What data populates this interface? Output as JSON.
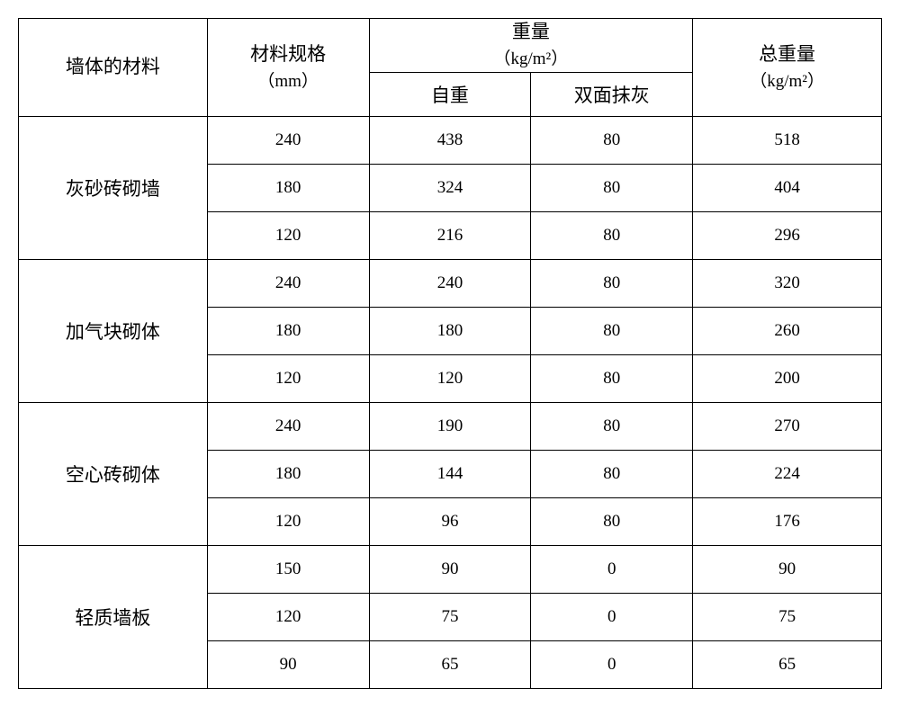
{
  "headers": {
    "material": "墙体的材料",
    "spec": "材料规格",
    "spec_unit": "（mm）",
    "weight_group": "重量",
    "weight_unit": "（kg/m²）",
    "self_weight": "自重",
    "plaster": "双面抹灰",
    "total": "总重量",
    "total_unit": "（kg/m²）"
  },
  "groups": [
    {
      "name": "灰砂砖砌墙",
      "rows": [
        {
          "spec": "240",
          "self": "438",
          "plaster": "80",
          "total": "518"
        },
        {
          "spec": "180",
          "self": "324",
          "plaster": "80",
          "total": "404"
        },
        {
          "spec": "120",
          "self": "216",
          "plaster": "80",
          "total": "296"
        }
      ]
    },
    {
      "name": "加气块砌体",
      "rows": [
        {
          "spec": "240",
          "self": "240",
          "plaster": "80",
          "total": "320"
        },
        {
          "spec": "180",
          "self": "180",
          "plaster": "80",
          "total": "260"
        },
        {
          "spec": "120",
          "self": "120",
          "plaster": "80",
          "total": "200"
        }
      ]
    },
    {
      "name": "空心砖砌体",
      "rows": [
        {
          "spec": "240",
          "self": "190",
          "plaster": "80",
          "total": "270"
        },
        {
          "spec": "180",
          "self": "144",
          "plaster": "80",
          "total": "224"
        },
        {
          "spec": "120",
          "self": "96",
          "plaster": "80",
          "total": "176"
        }
      ]
    },
    {
      "name": "轻质墙板",
      "rows": [
        {
          "spec": "150",
          "self": "90",
          "plaster": "0",
          "total": "90"
        },
        {
          "spec": "120",
          "self": "75",
          "plaster": "0",
          "total": "75"
        },
        {
          "spec": "90",
          "self": "65",
          "plaster": "0",
          "total": "65"
        }
      ]
    }
  ],
  "column_widths": {
    "material": "210px",
    "spec": "180px",
    "self": "180px",
    "plaster": "180px",
    "total": "210px"
  },
  "styling": {
    "border_color": "#000000",
    "background": "#ffffff",
    "font_family": "SimSun",
    "header_fontsize": 21,
    "data_fontsize": 19
  }
}
